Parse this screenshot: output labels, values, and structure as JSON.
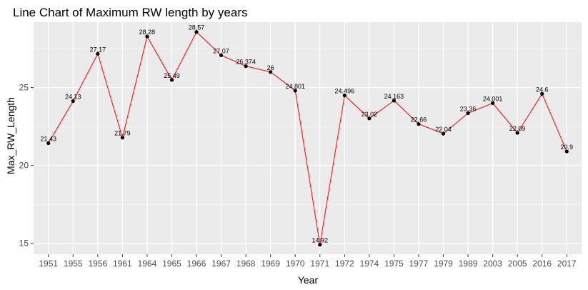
{
  "chart_data": {
    "type": "line",
    "title": "Line Chart of Maximum RW length by years",
    "xlabel": "Year",
    "ylabel": "Max_RW_Length",
    "categories": [
      "1951",
      "1955",
      "1956",
      "1961",
      "1964",
      "1965",
      "1966",
      "1967",
      "1968",
      "1969",
      "1970",
      "1971",
      "1972",
      "1974",
      "1975",
      "1977",
      "1979",
      "1989",
      "2003",
      "2005",
      "2016",
      "2017"
    ],
    "series": [
      {
        "values": [
          21.43,
          24.13,
          27.17,
          21.79,
          28.28,
          25.49,
          28.57,
          27.07,
          26.374,
          26,
          24.801,
          14.92,
          24.496,
          23.02,
          24.163,
          22.66,
          22.04,
          23.36,
          24.001,
          22.09,
          24.6,
          20.9
        ],
        "labels": [
          "21.43",
          "24.13",
          "27.17",
          "21.79",
          "28.28",
          "25.49",
          "28.57",
          "27.07",
          "26.374",
          "26",
          "24.801",
          "14.92",
          "24.496",
          "23.02",
          "24.163",
          "22.66",
          "22.04",
          "23.36",
          "24.001",
          "22.09",
          "24.6",
          "20.9"
        ]
      }
    ],
    "yticks": [
      15,
      20,
      25
    ],
    "ylim": [
      14.3,
      29.2
    ],
    "grid": true,
    "colors": {
      "panel_background": "#ebebeb",
      "grid_major": "#ffffff",
      "line": "#ff0000",
      "point": "#000000"
    }
  }
}
